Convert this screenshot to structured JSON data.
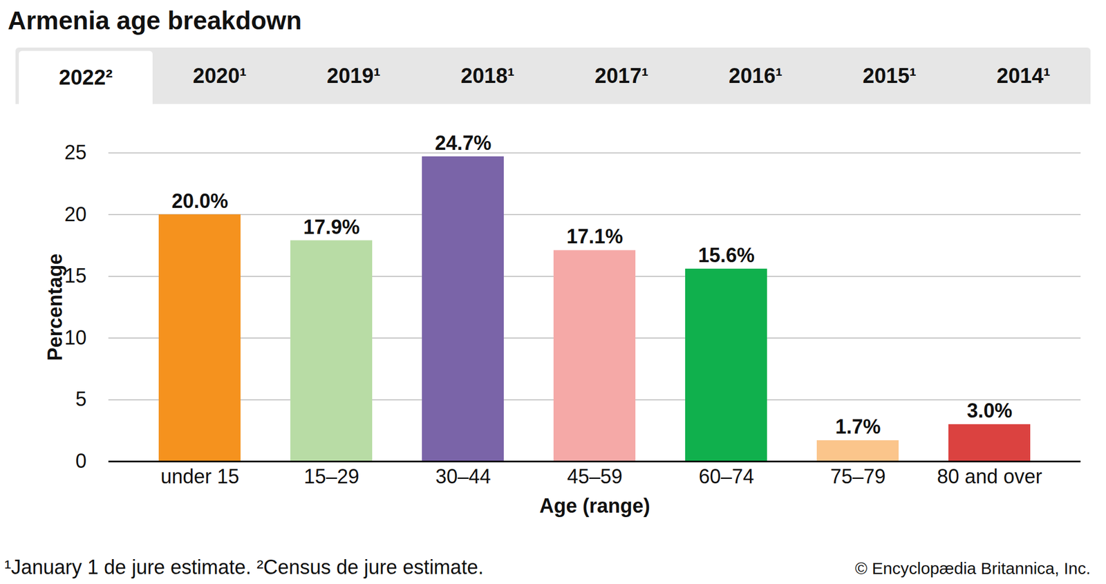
{
  "chart_data": {
    "type": "bar",
    "title": "Armenia age breakdown",
    "tabs": [
      "2022²",
      "2020¹",
      "2019¹",
      "2018¹",
      "2017¹",
      "2016¹",
      "2015¹",
      "2014¹"
    ],
    "x_label": "Age (range)",
    "y_label": "Percentage",
    "categories": [
      "under 15",
      "15–29",
      "30–44",
      "45–59",
      "60–74",
      "75–79",
      "80 and over"
    ],
    "values": [
      20.0,
      17.9,
      24.7,
      17.1,
      15.6,
      1.7,
      3.0
    ],
    "value_labels": [
      "20.0%",
      "17.9%",
      "24.7%",
      "17.1%",
      "15.6%",
      "1.7%",
      "3.0%"
    ],
    "colors": [
      "#f5921e",
      "#b8dca5",
      "#7a64a8",
      "#f5a9a7",
      "#10b04d",
      "#fbc58b",
      "#db4240"
    ],
    "ylim": [
      0,
      25
    ],
    "yticks": [
      0,
      5,
      10,
      15,
      20,
      25
    ],
    "grid": true,
    "data_labels": true,
    "notes": "¹January 1 de jure estimate. ²Census de jure estimate.",
    "source": "© Encyclopædia Britannica, Inc."
  }
}
